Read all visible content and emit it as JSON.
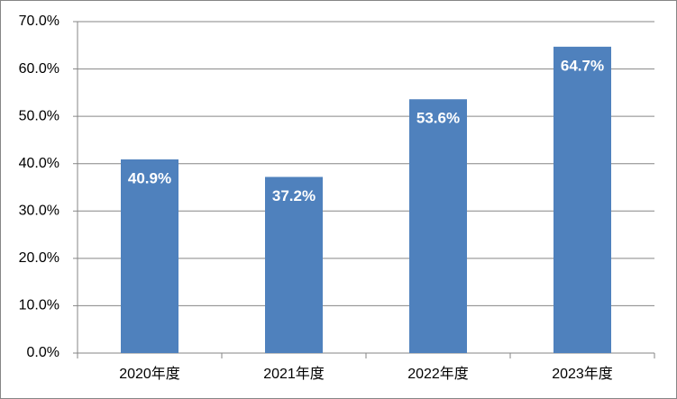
{
  "chart_data": {
    "type": "bar",
    "categories": [
      "2020年度",
      "2021年度",
      "2022年度",
      "2023年度"
    ],
    "values": [
      40.9,
      37.2,
      53.6,
      64.7
    ],
    "value_labels": [
      "40.9%",
      "37.2%",
      "53.6%",
      "64.7%"
    ],
    "color": "#4f81bd",
    "ylim": [
      0,
      70
    ],
    "yticks": [
      {
        "value": 0,
        "label": "0.0%"
      },
      {
        "value": 10,
        "label": "10.0%"
      },
      {
        "value": 20,
        "label": "20.0%"
      },
      {
        "value": 30,
        "label": "30.0%"
      },
      {
        "value": 40,
        "label": "40.0%"
      },
      {
        "value": 50,
        "label": "50.0%"
      },
      {
        "value": 60,
        "label": "60.0%"
      },
      {
        "value": 70,
        "label": "70.0%"
      }
    ],
    "grid": true
  }
}
